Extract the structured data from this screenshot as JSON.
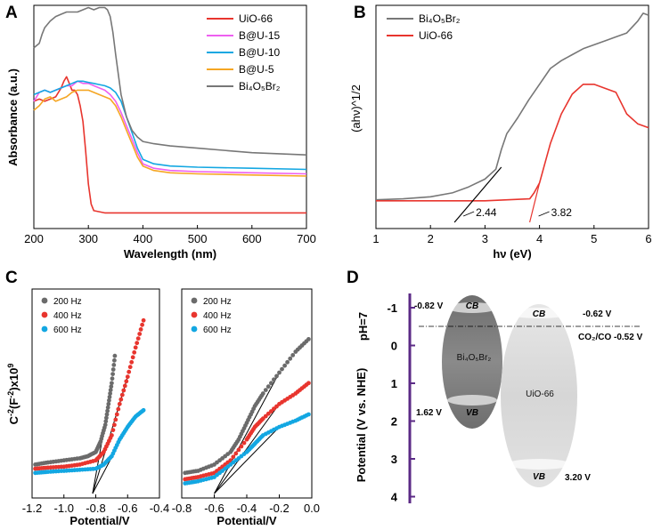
{
  "panels": {
    "A": {
      "letter": "A"
    },
    "B": {
      "letter": "B"
    },
    "C": {
      "letter": "C"
    },
    "D": {
      "letter": "D"
    }
  },
  "chart_data": [
    {
      "id": "A",
      "type": "line",
      "xlabel": "Wavelength (nm)",
      "ylabel": "Absorbance (a.u.)",
      "xlim": [
        200,
        700
      ],
      "ylim": [
        0,
        1
      ],
      "xticks": [
        200,
        300,
        400,
        500,
        600,
        700
      ],
      "legend_position": "top-right",
      "series": [
        {
          "name": "UiO-66",
          "color": "#e8352e",
          "x": [
            200,
            210,
            220,
            230,
            240,
            250,
            255,
            260,
            265,
            270,
            275,
            280,
            285,
            290,
            295,
            300,
            305,
            310,
            330,
            400,
            500,
            600,
            700
          ],
          "y": [
            0.57,
            0.58,
            0.57,
            0.58,
            0.59,
            0.63,
            0.66,
            0.68,
            0.65,
            0.62,
            0.62,
            0.6,
            0.55,
            0.48,
            0.35,
            0.2,
            0.11,
            0.08,
            0.07,
            0.07,
            0.07,
            0.07,
            0.07
          ]
        },
        {
          "name": "B@U-15",
          "color": "#ee5ff0",
          "x": [
            200,
            210,
            220,
            230,
            240,
            250,
            260,
            270,
            280,
            290,
            300,
            310,
            320,
            330,
            340,
            350,
            360,
            370,
            380,
            390,
            400,
            420,
            450,
            500,
            600,
            700
          ],
          "y": [
            0.57,
            0.61,
            0.62,
            0.61,
            0.62,
            0.63,
            0.64,
            0.64,
            0.66,
            0.65,
            0.65,
            0.64,
            0.63,
            0.62,
            0.6,
            0.57,
            0.52,
            0.46,
            0.4,
            0.34,
            0.29,
            0.27,
            0.26,
            0.255,
            0.25,
            0.245
          ]
        },
        {
          "name": "B@U-10",
          "color": "#13a7e2",
          "x": [
            200,
            210,
            220,
            230,
            240,
            250,
            260,
            270,
            280,
            290,
            300,
            310,
            320,
            330,
            340,
            350,
            360,
            370,
            380,
            390,
            400,
            420,
            450,
            500,
            600,
            700
          ],
          "y": [
            0.6,
            0.61,
            0.62,
            0.61,
            0.62,
            0.63,
            0.64,
            0.65,
            0.66,
            0.66,
            0.655,
            0.65,
            0.645,
            0.64,
            0.63,
            0.61,
            0.57,
            0.5,
            0.43,
            0.36,
            0.31,
            0.29,
            0.28,
            0.275,
            0.27,
            0.265
          ]
        },
        {
          "name": "B@U-5",
          "color": "#f5a623",
          "x": [
            200,
            210,
            220,
            230,
            240,
            250,
            260,
            270,
            280,
            290,
            300,
            310,
            320,
            330,
            340,
            350,
            360,
            370,
            380,
            390,
            400,
            420,
            450,
            500,
            600,
            700
          ],
          "y": [
            0.53,
            0.55,
            0.58,
            0.59,
            0.57,
            0.58,
            0.59,
            0.61,
            0.62,
            0.62,
            0.62,
            0.61,
            0.6,
            0.59,
            0.58,
            0.55,
            0.5,
            0.44,
            0.38,
            0.32,
            0.28,
            0.26,
            0.25,
            0.245,
            0.24,
            0.235
          ]
        },
        {
          "name": "Bi₄O₅Br₂",
          "color": "#777777",
          "x": [
            200,
            210,
            215,
            220,
            230,
            240,
            250,
            260,
            270,
            280,
            290,
            300,
            310,
            320,
            330,
            335,
            340,
            345,
            350,
            360,
            370,
            380,
            390,
            400,
            420,
            450,
            500,
            600,
            700
          ],
          "y": [
            0.81,
            0.83,
            0.87,
            0.9,
            0.93,
            0.95,
            0.96,
            0.97,
            0.97,
            0.97,
            0.98,
            0.99,
            0.98,
            0.99,
            0.99,
            0.98,
            0.95,
            0.88,
            0.78,
            0.6,
            0.5,
            0.44,
            0.41,
            0.39,
            0.38,
            0.37,
            0.36,
            0.34,
            0.33
          ]
        }
      ]
    },
    {
      "id": "B",
      "type": "line",
      "xlabel": "hν (eV)",
      "ylabel": "(ahν)^1/2",
      "xlim": [
        1,
        6
      ],
      "ylim": [
        0,
        1
      ],
      "xticks": [
        1,
        2,
        3,
        4,
        5,
        6
      ],
      "legend_position": "top-left",
      "series": [
        {
          "name": "Bi₄O₅Br₂",
          "color": "#777777",
          "x": [
            1,
            1.5,
            2,
            2.4,
            2.7,
            3,
            3.2,
            3.3,
            3.4,
            3.5,
            3.6,
            3.8,
            4,
            4.2,
            4.4,
            4.6,
            4.8,
            5,
            5.2,
            5.4,
            5.6,
            5.8,
            5.9,
            6
          ],
          "y": [
            0.015,
            0.02,
            0.03,
            0.05,
            0.08,
            0.12,
            0.17,
            0.27,
            0.35,
            0.39,
            0.43,
            0.52,
            0.6,
            0.68,
            0.72,
            0.75,
            0.78,
            0.8,
            0.82,
            0.84,
            0.86,
            0.92,
            0.96,
            0.95
          ]
        },
        {
          "name": "UiO-66",
          "color": "#e8352e",
          "x": [
            1,
            2,
            3,
            3.82,
            3.9,
            4,
            4.1,
            4.2,
            4.4,
            4.6,
            4.8,
            5,
            5.2,
            5.4,
            5.6,
            5.8,
            6
          ],
          "y": [
            0.01,
            0.01,
            0.01,
            0.02,
            0.05,
            0.1,
            0.2,
            0.3,
            0.45,
            0.55,
            0.6,
            0.6,
            0.58,
            0.56,
            0.45,
            0.4,
            0.38
          ]
        }
      ],
      "tangent_lines": [
        {
          "color": "#000000",
          "x": [
            2.44,
            3.3
          ],
          "y": [
            0,
            0.18
          ]
        },
        {
          "color": "#e8352e",
          "x": [
            3.82,
            4.0
          ],
          "y": [
            0,
            0.1
          ]
        }
      ],
      "annotations": [
        "2.44",
        "3.82"
      ]
    },
    {
      "id": "C-left",
      "type": "scatter",
      "ylabel": "C⁻²(F⁻²)x10⁹",
      "xlim": [
        -1.2,
        -0.4
      ],
      "ylim": [
        0,
        1
      ],
      "xticks": [
        -1.2,
        -1.0,
        -0.8,
        -0.6,
        -0.4
      ],
      "series": [
        {
          "name": "200 Hz",
          "color": "#6b6b6b",
          "x": [
            -1.18,
            -1.1,
            -1.0,
            -0.9,
            -0.85,
            -0.8,
            -0.77,
            -0.74,
            -0.72,
            -0.7,
            -0.68
          ],
          "y": [
            0.16,
            0.17,
            0.18,
            0.19,
            0.2,
            0.22,
            0.27,
            0.35,
            0.45,
            0.55,
            0.68
          ]
        },
        {
          "name": "400 Hz",
          "color": "#e8352e",
          "x": [
            -1.18,
            -1.1,
            -1.0,
            -0.9,
            -0.8,
            -0.75,
            -0.7,
            -0.65,
            -0.6,
            -0.55,
            -0.5
          ],
          "y": [
            0.14,
            0.145,
            0.15,
            0.16,
            0.18,
            0.22,
            0.3,
            0.45,
            0.58,
            0.72,
            0.85
          ]
        },
        {
          "name": "600 Hz",
          "color": "#13a7e2",
          "x": [
            -1.18,
            -1.1,
            -1.0,
            -0.9,
            -0.8,
            -0.75,
            -0.7,
            -0.65,
            -0.6,
            -0.55,
            -0.5
          ],
          "y": [
            0.12,
            0.125,
            0.13,
            0.135,
            0.14,
            0.16,
            0.2,
            0.28,
            0.34,
            0.39,
            0.42
          ]
        }
      ],
      "intercept": -0.82
    },
    {
      "id": "C-right",
      "type": "scatter",
      "xlim": [
        -0.8,
        0
      ],
      "ylim": [
        0,
        1
      ],
      "xticks": [
        -0.8,
        -0.6,
        -0.4,
        -0.2,
        0.0
      ],
      "series": [
        {
          "name": "200 Hz",
          "color": "#6b6b6b",
          "x": [
            -0.78,
            -0.7,
            -0.6,
            -0.5,
            -0.45,
            -0.4,
            -0.35,
            -0.3,
            -0.2,
            -0.1,
            -0.02
          ],
          "y": [
            0.12,
            0.13,
            0.16,
            0.22,
            0.28,
            0.36,
            0.44,
            0.5,
            0.6,
            0.7,
            0.76
          ]
        },
        {
          "name": "400 Hz",
          "color": "#e8352e",
          "x": [
            -0.78,
            -0.7,
            -0.6,
            -0.5,
            -0.4,
            -0.35,
            -0.3,
            -0.2,
            -0.1,
            -0.02
          ],
          "y": [
            0.09,
            0.1,
            0.12,
            0.18,
            0.28,
            0.34,
            0.38,
            0.45,
            0.5,
            0.55
          ]
        },
        {
          "name": "600 Hz",
          "color": "#13a7e2",
          "x": [
            -0.78,
            -0.7,
            -0.6,
            -0.5,
            -0.4,
            -0.35,
            -0.3,
            -0.2,
            -0.1,
            -0.02
          ],
          "y": [
            0.07,
            0.08,
            0.1,
            0.16,
            0.22,
            0.26,
            0.3,
            0.34,
            0.37,
            0.4
          ]
        }
      ],
      "intercept": -0.6
    }
  ],
  "panelC": {
    "xlabel": "Potential/V",
    "ylabel": "C⁻²(F⁻²)x10⁹",
    "ylabel_main": "C",
    "ylabel_sup1": "-2",
    "ylabel_mid": "(F",
    "ylabel_sup2": "-2",
    "ylabel_tail": ")x10",
    "ylabel_sup3": "9"
  },
  "panelD": {
    "ylabel": "Potential (V vs. NHE)",
    "ph_label": "pH=7",
    "yticks": [
      "-1",
      "0",
      "1",
      "2",
      "3",
      "4"
    ],
    "bi_label": "Bi₄O₅Br₂",
    "uio_label": "UiO-66",
    "cb": "CB",
    "vb": "VB",
    "bi_cb": "-0.82 V",
    "bi_vb": "1.62 V",
    "uio_cb": "-0.62 V",
    "uio_vb": "3.20 V",
    "redox_label": "CO₂/CO -0.52 V",
    "colors": {
      "bi": "#7a7a7a",
      "uio": "#dedede",
      "axis": "#5b2a86"
    }
  }
}
